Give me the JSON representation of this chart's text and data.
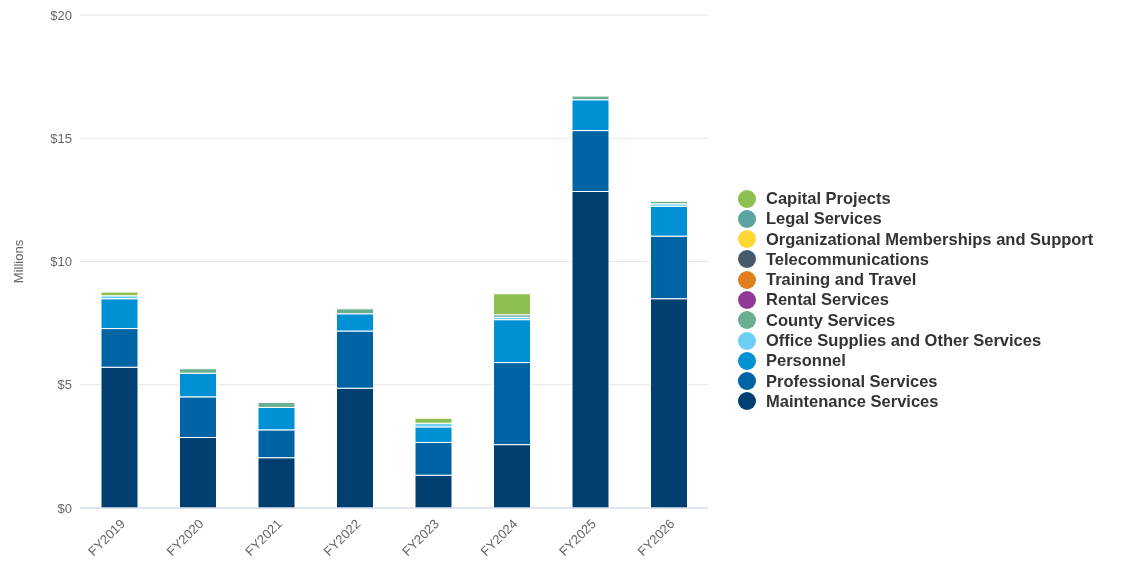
{
  "chart_data": {
    "type": "bar",
    "stacked": true,
    "ylabel": "Millions",
    "categories": [
      "FY2019",
      "FY2020",
      "FY2021",
      "FY2022",
      "FY2023",
      "FY2024",
      "FY2025",
      "FY2026"
    ],
    "series": [
      {
        "name": "Maintenance Services",
        "color": "#003f70",
        "values": [
          5.71,
          2.86,
          2.04,
          4.86,
          1.33,
          2.57,
          12.84,
          8.49
        ]
      },
      {
        "name": "Professional Services",
        "color": "#0064a4",
        "values": [
          1.57,
          1.65,
          1.13,
          2.32,
          1.33,
          3.33,
          2.47,
          2.54
        ]
      },
      {
        "name": "Personnel",
        "color": "#0090d4",
        "values": [
          1.21,
          0.96,
          0.91,
          0.7,
          0.63,
          1.74,
          1.25,
          1.21
        ]
      },
      {
        "name": "Office Supplies and Other Services",
        "color": "#6dcff6",
        "values": [
          0.12,
          null,
          null,
          null,
          0.15,
          0.1,
          null,
          0.1
        ]
      },
      {
        "name": "County Services",
        "color": "#6aaf8f",
        "values": [
          null,
          0.18,
          0.2,
          0.2,
          null,
          null,
          0.15,
          0.1
        ]
      },
      {
        "name": "Rental Services",
        "color": "#8e3a96",
        "values": [
          null,
          null,
          null,
          null,
          null,
          null,
          null,
          null
        ]
      },
      {
        "name": "Training and Travel",
        "color": "#e08020",
        "values": [
          null,
          null,
          null,
          null,
          null,
          null,
          null,
          null
        ]
      },
      {
        "name": "Telecommunications",
        "color": "#455a6b",
        "values": [
          null,
          null,
          null,
          null,
          null,
          null,
          null,
          null
        ]
      },
      {
        "name": "Organizational Memberships and Support",
        "color": "#fdd835",
        "values": [
          null,
          null,
          null,
          null,
          null,
          null,
          null,
          null
        ]
      },
      {
        "name": "Legal Services",
        "color": "#5ba3a0",
        "values": [
          null,
          null,
          null,
          null,
          null,
          0.1,
          null,
          null
        ]
      },
      {
        "name": "Capital Projects",
        "color": "#8cc152",
        "values": [
          0.15,
          null,
          null,
          null,
          0.2,
          0.85,
          null,
          null
        ]
      }
    ],
    "ylim": [
      0,
      20
    ],
    "yticks": [
      {
        "value": 0,
        "label": "$0"
      },
      {
        "value": 5,
        "label": "$5"
      },
      {
        "value": 10,
        "label": "$10"
      },
      {
        "value": 15,
        "label": "$15"
      },
      {
        "value": 20,
        "label": "$20"
      }
    ],
    "grid": "y",
    "legend": "right"
  }
}
